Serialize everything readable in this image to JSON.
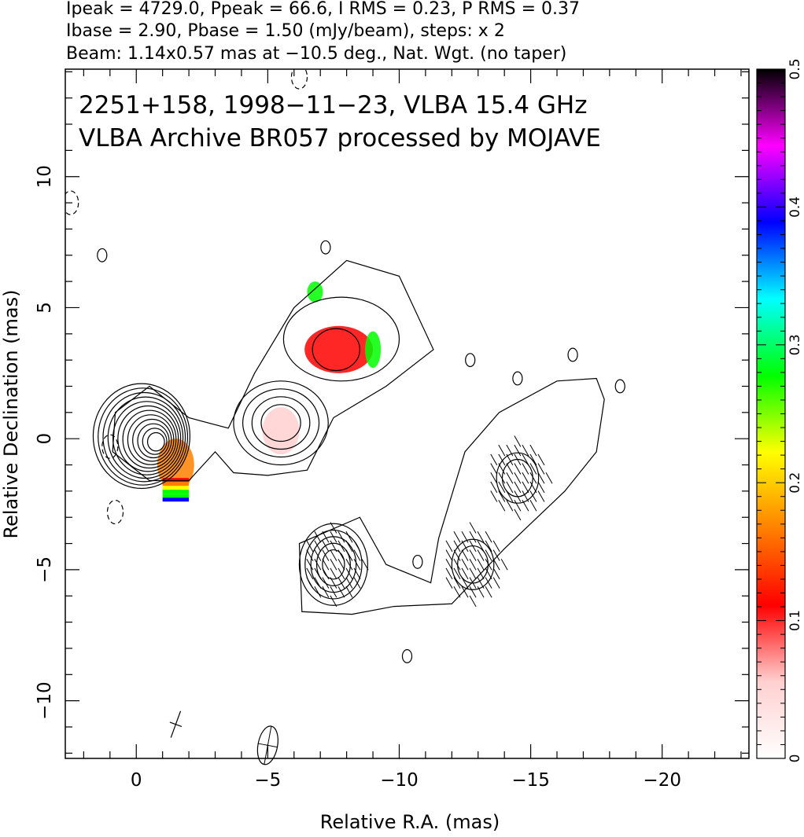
{
  "header": {
    "line1": "Ipeak = 4729.0, Ppeak = 66.6, I RMS = 0.23, P RMS = 0.37",
    "line2": "Ibase = 2.90, Pbase = 1.50 (mJy/beam), steps: x 2",
    "line3": "Beam: 1.14x0.57 mas at −10.5 deg., Nat. Wgt. (no taper)"
  },
  "chart_data": {
    "type": "heatmap",
    "title_lines": [
      "2251+158, 1998−11−23, VLBA 15.4 GHz",
      "VLBA Archive BR057 processed by MOJAVE"
    ],
    "xlabel": "Relative R.A. (mas)",
    "ylabel": "Relative Declination (mas)",
    "xlim": [
      2.7,
      -23.3
    ],
    "ylim": [
      -12.2,
      14.1
    ],
    "x_ticks": [
      0,
      -5,
      -10,
      -15,
      -20
    ],
    "x_tick_labels": [
      "0",
      "−5",
      "−10",
      "−15",
      "−20"
    ],
    "y_ticks": [
      -10,
      -5,
      0,
      5,
      10
    ],
    "y_tick_labels": [
      "−10",
      "−5",
      "0",
      "5",
      "10"
    ],
    "colorbar": {
      "range": [
        0,
        0.5
      ],
      "ticks": [
        0,
        0.1,
        0.2,
        0.3,
        0.4,
        0.5
      ],
      "tick_labels": [
        "0",
        "0.1",
        "0.2",
        "0.3",
        "0.4",
        "0.5"
      ],
      "colors": [
        "#ffffff",
        "#ffd0d0",
        "#ff0000",
        "#ff8000",
        "#ffff00",
        "#00ff00",
        "#00ffff",
        "#0000ff",
        "#ff00ff",
        "#000000"
      ]
    },
    "core": {
      "x": -0.2,
      "y": 0.1
    },
    "contours": {
      "core_levels": 12,
      "knot_a": {
        "x": -5.5,
        "y": 0.6,
        "levels": 4
      },
      "knot_b": {
        "x": -7.5,
        "y": -4.8,
        "levels": 5,
        "hatched": true
      },
      "knot_c": {
        "x": -12.8,
        "y": -4.8,
        "levels": 2,
        "hatched": true
      },
      "knot_d": {
        "x": -14.5,
        "y": -1.5,
        "levels": 2,
        "hatched": true
      }
    },
    "beam": {
      "major": 1.14,
      "minor": 0.57,
      "pa_deg": -10.5,
      "x": -5.0,
      "y": -11.7
    },
    "polarization_patches": [
      {
        "x": -0.2,
        "y": 0.3,
        "value": 0.01
      },
      {
        "x": -1.5,
        "y": -1.0,
        "value": 0.15
      },
      {
        "x": -5.5,
        "y": 0.3,
        "value": 0.05
      },
      {
        "x": -7.7,
        "y": 3.4,
        "value": 0.12
      },
      {
        "x": -6.8,
        "y": 5.6,
        "value": 0.25
      },
      {
        "x": -9.0,
        "y": 3.4,
        "value": 0.3
      }
    ],
    "grid": false,
    "legend": "colorbar-right"
  }
}
